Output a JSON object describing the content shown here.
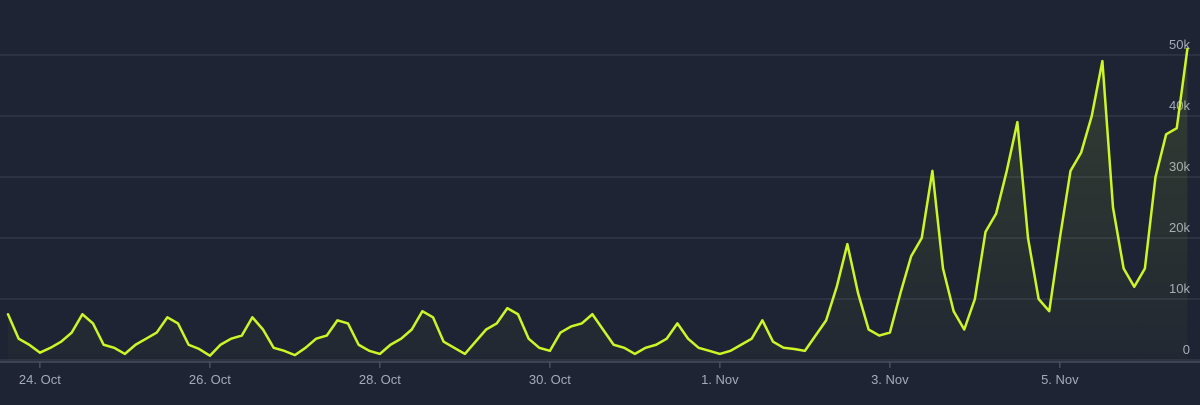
{
  "chart_data": {
    "type": "line",
    "categories": [
      null,
      null,
      null,
      "24. Oct",
      null,
      null,
      null,
      null,
      null,
      null,
      null,
      null,
      null,
      null,
      null,
      null,
      null,
      null,
      null,
      "26. Oct",
      null,
      null,
      null,
      null,
      null,
      null,
      null,
      null,
      null,
      null,
      null,
      null,
      null,
      null,
      null,
      "28. Oct",
      null,
      null,
      null,
      null,
      null,
      null,
      null,
      null,
      null,
      null,
      null,
      null,
      null,
      null,
      null,
      "30. Oct",
      null,
      null,
      null,
      null,
      null,
      null,
      null,
      null,
      null,
      null,
      null,
      null,
      null,
      null,
      null,
      "1. Nov",
      null,
      null,
      null,
      null,
      null,
      null,
      null,
      null,
      null,
      null,
      null,
      null,
      null,
      null,
      null,
      "3. Nov",
      null,
      null,
      null,
      null,
      null,
      null,
      null,
      null,
      null,
      null,
      null,
      null,
      null,
      null,
      null,
      "5. Nov",
      null,
      null,
      null,
      null,
      null,
      null,
      null,
      null,
      null,
      null,
      null,
      null
    ],
    "values": [
      7500,
      3500,
      2500,
      1200,
      2000,
      3000,
      4500,
      7500,
      6000,
      2500,
      2000,
      1000,
      2500,
      3500,
      4500,
      7000,
      6000,
      2500,
      1800,
      700,
      2500,
      3500,
      4000,
      7000,
      5000,
      2000,
      1500,
      800,
      2000,
      3500,
      4000,
      6500,
      6000,
      2500,
      1500,
      1000,
      2500,
      3500,
      5000,
      8000,
      7000,
      3000,
      2000,
      1000,
      3000,
      5000,
      6000,
      8500,
      7500,
      3500,
      2000,
      1500,
      4500,
      5500,
      6000,
      7500,
      5000,
      2500,
      2000,
      1000,
      2000,
      2500,
      3500,
      6000,
      3500,
      2000,
      1500,
      1000,
      1500,
      2500,
      3500,
      6500,
      3000,
      2000,
      1800,
      1500,
      4000,
      6500,
      12000,
      19000,
      11000,
      5000,
      4000,
      4500,
      11000,
      17000,
      20000,
      31000,
      15000,
      8000,
      5000,
      10000,
      21000,
      24000,
      31000,
      39000,
      20000,
      10000,
      8000,
      20000,
      31000,
      34000,
      40000,
      49000,
      25000,
      15000,
      12000,
      15000,
      30000,
      37000,
      38000,
      51000
    ],
    "color": "#cff527",
    "ylim": [
      0,
      50000
    ],
    "yticks": [
      0,
      {
        "value": 10000,
        "label": "10k"
      },
      {
        "value": 20000,
        "label": "20k"
      },
      {
        "value": 30000,
        "label": "30k"
      },
      {
        "value": 40000,
        "label": "40k"
      },
      {
        "value": 50000,
        "label": "50k"
      }
    ],
    "grid": true
  }
}
